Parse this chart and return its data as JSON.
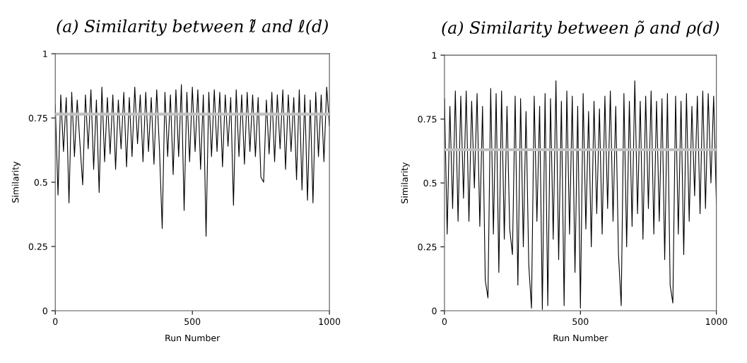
{
  "chart_data": [
    {
      "type": "line",
      "title": "(a) Similarity between ℓ̃ and ℓ(d)",
      "xlabel": "Run Number",
      "ylabel": "Similarity",
      "xlim": [
        0,
        1000
      ],
      "ylim": [
        0,
        1
      ],
      "xticks": [
        0,
        500,
        1000
      ],
      "yticks": [
        0,
        0.25,
        0.5,
        0.75,
        1
      ],
      "grid": false,
      "marker": "none",
      "line_style": "solid",
      "ref_lines": [
        {
          "axis": "y",
          "value": 0.765,
          "color": "#c0c0c0"
        }
      ],
      "series": [
        {
          "color": "#000000",
          "x": [
            0,
            10,
            20,
            30,
            40,
            50,
            60,
            70,
            80,
            90,
            100,
            110,
            120,
            130,
            140,
            150,
            160,
            170,
            180,
            190,
            200,
            210,
            220,
            230,
            240,
            250,
            260,
            270,
            280,
            290,
            300,
            310,
            320,
            330,
            340,
            350,
            360,
            370,
            380,
            390,
            400,
            410,
            420,
            430,
            440,
            450,
            460,
            470,
            480,
            490,
            500,
            510,
            520,
            530,
            540,
            550,
            560,
            570,
            580,
            590,
            600,
            610,
            620,
            630,
            640,
            650,
            660,
            670,
            680,
            690,
            700,
            710,
            720,
            730,
            740,
            750,
            760,
            770,
            780,
            790,
            800,
            810,
            820,
            830,
            840,
            850,
            860,
            870,
            880,
            890,
            900,
            910,
            920,
            930,
            940,
            950,
            960,
            970,
            980,
            990,
            1000
          ],
          "values": [
            0.8,
            0.45,
            0.84,
            0.62,
            0.83,
            0.42,
            0.85,
            0.6,
            0.82,
            0.65,
            0.49,
            0.84,
            0.63,
            0.86,
            0.55,
            0.82,
            0.46,
            0.87,
            0.58,
            0.83,
            0.61,
            0.84,
            0.55,
            0.82,
            0.63,
            0.85,
            0.56,
            0.83,
            0.6,
            0.87,
            0.65,
            0.84,
            0.58,
            0.85,
            0.62,
            0.83,
            0.57,
            0.86,
            0.63,
            0.32,
            0.85,
            0.6,
            0.84,
            0.53,
            0.86,
            0.6,
            0.88,
            0.39,
            0.85,
            0.58,
            0.87,
            0.62,
            0.86,
            0.55,
            0.84,
            0.29,
            0.85,
            0.6,
            0.86,
            0.62,
            0.85,
            0.56,
            0.84,
            0.64,
            0.83,
            0.41,
            0.86,
            0.6,
            0.84,
            0.57,
            0.85,
            0.62,
            0.84,
            0.6,
            0.83,
            0.52,
            0.5,
            0.82,
            0.61,
            0.85,
            0.58,
            0.84,
            0.63,
            0.86,
            0.55,
            0.84,
            0.62,
            0.83,
            0.51,
            0.86,
            0.47,
            0.84,
            0.43,
            0.82,
            0.42,
            0.85,
            0.6,
            0.84,
            0.58,
            0.87,
            0.72
          ]
        }
      ]
    },
    {
      "type": "line",
      "title": "(a) Similarity between ρ̃ and ρ(d)",
      "xlabel": "Run Number",
      "ylabel": "Similarity",
      "xlim": [
        0,
        1000
      ],
      "ylim": [
        0,
        1
      ],
      "xticks": [
        0,
        500,
        1000
      ],
      "yticks": [
        0,
        0.25,
        0.5,
        0.75,
        1
      ],
      "grid": false,
      "marker": "none",
      "line_style": "solid",
      "ref_lines": [
        {
          "axis": "y",
          "value": 0.63,
          "color": "#c0c0c0"
        }
      ],
      "series": [
        {
          "color": "#000000",
          "x": [
            0,
            10,
            20,
            30,
            40,
            50,
            60,
            70,
            80,
            90,
            100,
            110,
            120,
            130,
            140,
            150,
            160,
            170,
            180,
            190,
            200,
            210,
            220,
            230,
            240,
            250,
            260,
            270,
            280,
            290,
            300,
            310,
            320,
            330,
            340,
            350,
            360,
            370,
            380,
            390,
            400,
            410,
            420,
            430,
            440,
            450,
            460,
            470,
            480,
            490,
            500,
            510,
            520,
            530,
            540,
            550,
            560,
            570,
            580,
            590,
            600,
            610,
            620,
            630,
            640,
            650,
            660,
            670,
            680,
            690,
            700,
            710,
            720,
            730,
            740,
            750,
            760,
            770,
            780,
            790,
            800,
            810,
            820,
            830,
            840,
            850,
            860,
            870,
            880,
            890,
            900,
            910,
            920,
            930,
            940,
            950,
            960,
            970,
            980,
            990,
            1000
          ],
          "values": [
            0.83,
            0.3,
            0.8,
            0.4,
            0.86,
            0.35,
            0.84,
            0.44,
            0.86,
            0.35,
            0.82,
            0.48,
            0.85,
            0.33,
            0.8,
            0.12,
            0.05,
            0.87,
            0.3,
            0.85,
            0.15,
            0.86,
            0.28,
            0.8,
            0.32,
            0.22,
            0.84,
            0.1,
            0.83,
            0.25,
            0.78,
            0.18,
            0.01,
            0.84,
            0.35,
            0.8,
            0.005,
            0.85,
            0.02,
            0.83,
            0.28,
            0.9,
            0.2,
            0.82,
            0.02,
            0.86,
            0.3,
            0.84,
            0.15,
            0.8,
            0.01,
            0.85,
            0.32,
            0.78,
            0.25,
            0.82,
            0.38,
            0.79,
            0.3,
            0.84,
            0.4,
            0.86,
            0.35,
            0.8,
            0.22,
            0.02,
            0.85,
            0.25,
            0.82,
            0.33,
            0.9,
            0.38,
            0.82,
            0.28,
            0.84,
            0.4,
            0.86,
            0.3,
            0.82,
            0.35,
            0.83,
            0.2,
            0.85,
            0.1,
            0.03,
            0.84,
            0.3,
            0.82,
            0.22,
            0.85,
            0.35,
            0.8,
            0.45,
            0.84,
            0.38,
            0.86,
            0.4,
            0.85,
            0.5,
            0.84,
            0.42
          ]
        }
      ]
    }
  ]
}
